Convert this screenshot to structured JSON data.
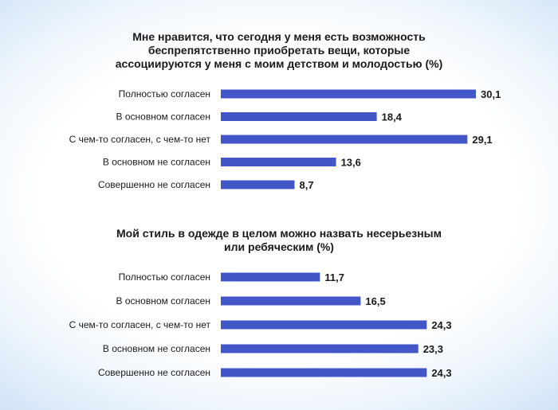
{
  "chart_data": [
    {
      "type": "bar",
      "orientation": "horizontal",
      "title_lines": [
        "Мне нравится, что сегодня у меня есть возможность",
        "беспрепятственно приобретать вещи, которые",
        "ассоциируются у меня с моим детством и молодостью (%)"
      ],
      "categories": [
        "Полностью согласен",
        "В основном согласен",
        "С чем-то согласен, с чем-то нет",
        "В основном не согласен",
        "Совершенно не согласен"
      ],
      "values": [
        30.1,
        18.4,
        29.1,
        13.6,
        8.7
      ],
      "value_labels": [
        "30,1",
        "18,4",
        "29,1",
        "13,6",
        "8,7"
      ],
      "bar_color": "#4356c8",
      "xlim": [
        0,
        30.1
      ],
      "grid": false,
      "legend": "none"
    },
    {
      "type": "bar",
      "orientation": "horizontal",
      "title_lines": [
        "Мой стиль в одежде в целом можно назвать несерьезным",
        "или ребяческим (%)"
      ],
      "categories": [
        "Полностью согласен",
        "В основном согласен",
        "С чем-то согласен, с чем-то нет",
        "В основном не согласен",
        "Совершенно не согласен"
      ],
      "values": [
        11.7,
        16.5,
        24.3,
        23.3,
        24.3
      ],
      "value_labels": [
        "11,7",
        "16,5",
        "24,3",
        "23,3",
        "24,3"
      ],
      "bar_color": "#4356c8",
      "xlim": [
        0,
        30.1
      ],
      "grid": false,
      "legend": "none"
    }
  ]
}
